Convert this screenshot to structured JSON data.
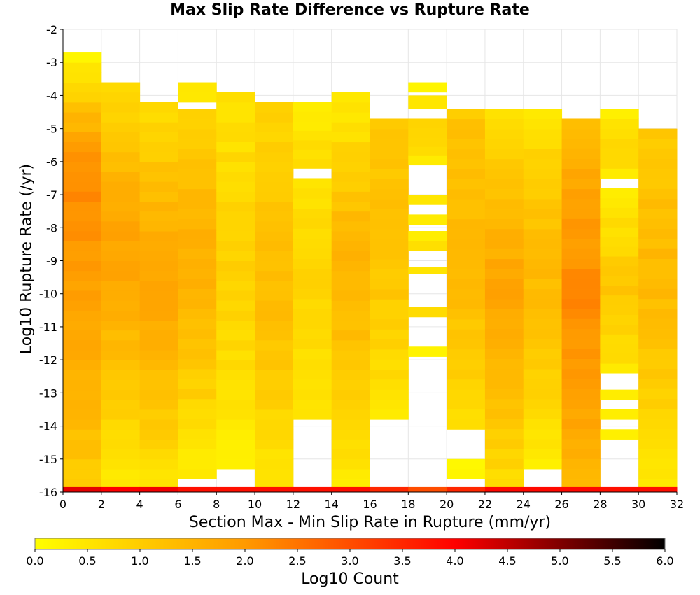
{
  "chart_data": {
    "type": "heatmap",
    "title": "Max Slip Rate Difference vs Rupture Rate",
    "xlabel": "Section Max - Min Slip Rate in Rupture (mm/yr)",
    "ylabel": "Log10 Rupture Rate (/yr)",
    "xlim": [
      0,
      32
    ],
    "ylim": [
      -16,
      -2
    ],
    "x_ticks": [
      "0",
      "2",
      "4",
      "6",
      "8",
      "10",
      "12",
      "14",
      "16",
      "18",
      "20",
      "22",
      "24",
      "26",
      "28",
      "30",
      "32"
    ],
    "y_ticks": [
      "-2",
      "-3",
      "-4",
      "-5",
      "-6",
      "-7",
      "-8",
      "-9",
      "-10",
      "-11",
      "-12",
      "-13",
      "-14",
      "-15",
      "-16"
    ],
    "x_bin_width": 2,
    "y_bin_height": 0.3,
    "colorbar": {
      "label": "Log10 Count",
      "range": [
        0,
        6
      ],
      "ticks": [
        "0.0",
        "0.5",
        "1.0",
        "1.5",
        "2.0",
        "2.5",
        "3.0",
        "3.5",
        "4.0",
        "4.5",
        "5.0",
        "5.5",
        "6.0"
      ],
      "colors": [
        "#ffff00",
        "#ff9a00",
        "#ff0000",
        "#000000"
      ]
    },
    "columns": [
      {
        "x0": 0,
        "segments": [
          {
            "from": -15.9,
            "to": -2.7,
            "top": 0.1,
            "peak": 2.2,
            "peak_at": -6.5,
            "bottom": 1.0
          }
        ]
      },
      {
        "x0": 2,
        "segments": [
          {
            "from": -15.9,
            "to": -3.6,
            "top": 0.6,
            "peak": 1.8,
            "peak_at": -8.5,
            "bottom": 0.4
          }
        ]
      },
      {
        "x0": 4,
        "segments": [
          {
            "from": -15.9,
            "to": -4.2,
            "top": 0.6,
            "peak": 1.8,
            "peak_at": -9.5,
            "bottom": 0.5
          }
        ]
      },
      {
        "x0": 6,
        "segments": [
          {
            "from": -15.6,
            "to": -4.4,
            "top": 0.9,
            "peak": 1.6,
            "peak_at": -9.0,
            "bottom": 0.3
          },
          {
            "from": -4.2,
            "to": -3.6,
            "top": 0.3,
            "peak": 0.4,
            "peak_at": -3.9,
            "bottom": 0.3
          }
        ]
      },
      {
        "x0": 8,
        "segments": [
          {
            "from": -15.3,
            "to": -3.9,
            "top": 0.5,
            "peak": 0.9,
            "peak_at": -9.0,
            "bottom": 0.3
          }
        ]
      },
      {
        "x0": 10,
        "segments": [
          {
            "from": -15.9,
            "to": -4.2,
            "top": 0.8,
            "peak": 1.3,
            "peak_at": -10.0,
            "bottom": 0.4
          }
        ]
      },
      {
        "x0": 12,
        "segments": [
          {
            "from": -13.8,
            "to": -6.5,
            "top": 0.5,
            "peak": 0.9,
            "peak_at": -9.5,
            "bottom": 0.4
          },
          {
            "from": -6.2,
            "to": -4.2,
            "top": 0.3,
            "peak": 0.6,
            "peak_at": -5.5,
            "bottom": 0.6
          }
        ]
      },
      {
        "x0": 14,
        "segments": [
          {
            "from": -15.9,
            "to": -3.9,
            "top": 0.3,
            "peak": 1.5,
            "peak_at": -9.0,
            "bottom": 0.4
          }
        ]
      },
      {
        "x0": 16,
        "segments": [
          {
            "from": -13.8,
            "to": -4.7,
            "top": 1.0,
            "peak": 1.3,
            "peak_at": -8.0,
            "bottom": 0.4
          }
        ]
      },
      {
        "x0": 18,
        "segments": [
          {
            "from": -11.9,
            "to": -11.6,
            "top": 0.3,
            "peak": 0.3,
            "peak_at": -11.7,
            "bottom": 0.3
          },
          {
            "from": -10.7,
            "to": -10.4,
            "top": 0.6,
            "peak": 0.6,
            "peak_at": -10.5,
            "bottom": 0.6
          },
          {
            "from": -9.4,
            "to": -9.2,
            "top": 0.4,
            "peak": 0.4,
            "peak_at": -9.3,
            "bottom": 0.4
          },
          {
            "from": -8.7,
            "to": -8.1,
            "top": 0.4,
            "peak": 0.5,
            "peak_at": -8.4,
            "bottom": 0.5
          },
          {
            "from": -7.9,
            "to": -7.6,
            "top": 0.4,
            "peak": 0.4,
            "peak_at": -7.7,
            "bottom": 0.4
          },
          {
            "from": -7.3,
            "to": -7.0,
            "top": 0.4,
            "peak": 0.4,
            "peak_at": -7.1,
            "bottom": 0.4
          },
          {
            "from": -6.1,
            "to": -4.7,
            "top": 0.8,
            "peak": 0.8,
            "peak_at": -5.5,
            "bottom": 0.4
          },
          {
            "from": -4.4,
            "to": -4.0,
            "top": 0.5,
            "peak": 0.5,
            "peak_at": -4.2,
            "bottom": 0.5
          },
          {
            "from": -3.9,
            "to": -3.6,
            "top": 0.3,
            "peak": 0.3,
            "peak_at": -3.7,
            "bottom": 0.3
          }
        ]
      },
      {
        "x0": 20,
        "segments": [
          {
            "from": -15.6,
            "to": -15.0,
            "top": 0.2,
            "peak": 0.2,
            "peak_at": -15.3,
            "bottom": 0.2
          },
          {
            "from": -14.1,
            "to": -4.4,
            "top": 1.1,
            "peak": 1.4,
            "peak_at": -9.0,
            "bottom": 0.6
          }
        ]
      },
      {
        "x0": 22,
        "segments": [
          {
            "from": -15.9,
            "to": -4.4,
            "top": 0.5,
            "peak": 1.8,
            "peak_at": -10.0,
            "bottom": 0.6
          }
        ]
      },
      {
        "x0": 24,
        "segments": [
          {
            "from": -15.3,
            "to": -4.4,
            "top": 0.5,
            "peak": 1.4,
            "peak_at": -9.0,
            "bottom": 0.4
          }
        ]
      },
      {
        "x0": 26,
        "segments": [
          {
            "from": -15.9,
            "to": -4.7,
            "top": 1.3,
            "peak": 2.2,
            "peak_at": -10.0,
            "bottom": 1.4
          }
        ]
      },
      {
        "x0": 28,
        "segments": [
          {
            "from": -14.4,
            "to": -14.1,
            "top": 0.3,
            "peak": 0.3,
            "peak_at": -14.2,
            "bottom": 0.3
          },
          {
            "from": -13.8,
            "to": -13.5,
            "top": 0.4,
            "peak": 0.4,
            "peak_at": -13.6,
            "bottom": 0.4
          },
          {
            "from": -13.2,
            "to": -12.9,
            "top": 0.3,
            "peak": 0.3,
            "peak_at": -13.0,
            "bottom": 0.3
          },
          {
            "from": -12.4,
            "to": -6.8,
            "top": 0.3,
            "peak": 1.1,
            "peak_at": -10.0,
            "bottom": 0.5
          },
          {
            "from": -6.5,
            "to": -4.4,
            "top": 0.3,
            "peak": 0.9,
            "peak_at": -5.5,
            "bottom": 0.4
          }
        ]
      },
      {
        "x0": 30,
        "segments": [
          {
            "from": -15.9,
            "to": -5.0,
            "top": 1.0,
            "peak": 1.4,
            "peak_at": -9.5,
            "bottom": 0.4
          }
        ]
      }
    ],
    "bottom_row": {
      "from": -16.0,
      "to": -15.85,
      "values": [
        4.2,
        4.0,
        4.1,
        3.8,
        3.8,
        3.8,
        3.8,
        3.8,
        3.5,
        3.0,
        3.5,
        3.9,
        3.9,
        3.9,
        3.8,
        3.8
      ]
    }
  }
}
